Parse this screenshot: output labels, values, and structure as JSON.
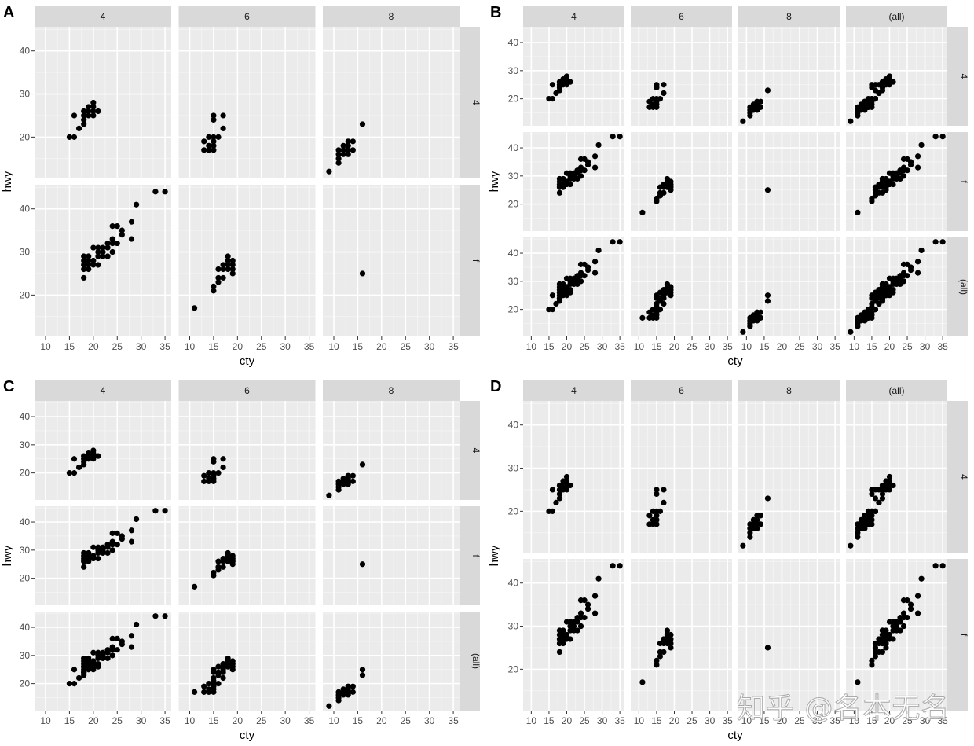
{
  "figure": {
    "panel_labels": [
      "A",
      "B",
      "C",
      "D"
    ],
    "watermark": "知乎 @名本无名",
    "colors": {
      "panel_bg": "#EBEBEB",
      "strip_bg": "#D9D9D9",
      "grid_major": "#FFFFFF",
      "grid_minor": "#F5F5F5",
      "axis_text": "#4D4D4D",
      "point": "#000000"
    }
  },
  "chart_data": [
    {
      "id": "A",
      "type": "scatter",
      "xlabel": "cty",
      "ylabel": "hwy",
      "col_strips": [
        "4",
        "6",
        "8"
      ],
      "row_strips": [
        "4",
        "f"
      ],
      "xticks": [
        10,
        15,
        20,
        25,
        30,
        35
      ],
      "yticks": [
        20,
        30,
        40
      ],
      "xlim": [
        7.7,
        36.3
      ],
      "ylim": [
        10.4,
        45.6
      ],
      "margins": false
    },
    {
      "id": "B",
      "type": "scatter",
      "xlabel": "cty",
      "ylabel": "hwy",
      "col_strips": [
        "4",
        "6",
        "8",
        "(all)"
      ],
      "row_strips": [
        "4",
        "f",
        "(all)"
      ],
      "xticks": [
        10,
        15,
        20,
        25,
        30,
        35
      ],
      "yticks": [
        20,
        30,
        40
      ],
      "xlim": [
        7.7,
        36.3
      ],
      "ylim": [
        10.4,
        45.6
      ],
      "margins": true
    },
    {
      "id": "C",
      "type": "scatter",
      "xlabel": "cty",
      "ylabel": "hwy",
      "col_strips": [
        "4",
        "6",
        "8"
      ],
      "row_strips": [
        "4",
        "f",
        "(all)"
      ],
      "xticks": [
        10,
        15,
        20,
        25,
        30,
        35
      ],
      "yticks": [
        20,
        30,
        40
      ],
      "xlim": [
        7.7,
        36.3
      ],
      "ylim": [
        10.4,
        45.6
      ],
      "margins": "rows"
    },
    {
      "id": "D",
      "type": "scatter",
      "xlabel": "cty",
      "ylabel": "hwy",
      "col_strips": [
        "4",
        "6",
        "8",
        "(all)"
      ],
      "row_strips": [
        "4",
        "f"
      ],
      "xticks": [
        10,
        15,
        20,
        25,
        30,
        35
      ],
      "yticks": [
        20,
        30,
        40
      ],
      "xlim": [
        7.7,
        36.3
      ],
      "ylim": [
        10.4,
        45.6
      ],
      "margins": "cols"
    }
  ],
  "groups": {
    "cyl4_drv4": [
      [
        15,
        20
      ],
      [
        16,
        20
      ],
      [
        16,
        25
      ],
      [
        17,
        22
      ],
      [
        18,
        23
      ],
      [
        18,
        24
      ],
      [
        18,
        25
      ],
      [
        18,
        26
      ],
      [
        19,
        25
      ],
      [
        19,
        26
      ],
      [
        19,
        27
      ],
      [
        20,
        25
      ],
      [
        20,
        26
      ],
      [
        20,
        27
      ],
      [
        20,
        28
      ],
      [
        21,
        26
      ]
    ],
    "cyl6_drv4": [
      [
        13,
        17
      ],
      [
        13,
        19
      ],
      [
        14,
        17
      ],
      [
        14,
        18
      ],
      [
        14,
        20
      ],
      [
        15,
        17
      ],
      [
        15,
        18
      ],
      [
        15,
        19
      ],
      [
        15,
        20
      ],
      [
        15,
        24
      ],
      [
        15,
        25
      ],
      [
        16,
        20
      ],
      [
        17,
        22
      ],
      [
        17,
        25
      ]
    ],
    "cyl8_drv4": [
      [
        9,
        12
      ],
      [
        11,
        14
      ],
      [
        11,
        15
      ],
      [
        11,
        16
      ],
      [
        11,
        17
      ],
      [
        12,
        16
      ],
      [
        12,
        17
      ],
      [
        12,
        18
      ],
      [
        13,
        16
      ],
      [
        13,
        17
      ],
      [
        13,
        18
      ],
      [
        13,
        19
      ],
      [
        14,
        17
      ],
      [
        14,
        19
      ],
      [
        16,
        23
      ]
    ],
    "cyl4_drvf": [
      [
        18,
        24
      ],
      [
        18,
        26
      ],
      [
        18,
        27
      ],
      [
        18,
        28
      ],
      [
        18,
        29
      ],
      [
        19,
        26
      ],
      [
        19,
        27
      ],
      [
        19,
        28
      ],
      [
        19,
        29
      ],
      [
        20,
        27
      ],
      [
        20,
        28
      ],
      [
        20,
        31
      ],
      [
        21,
        27
      ],
      [
        21,
        29
      ],
      [
        21,
        30
      ],
      [
        21,
        31
      ],
      [
        22,
        29
      ],
      [
        22,
        30
      ],
      [
        22,
        31
      ],
      [
        23,
        29
      ],
      [
        23,
        31
      ],
      [
        23,
        32
      ],
      [
        24,
        30
      ],
      [
        24,
        32
      ],
      [
        24,
        33
      ],
      [
        24,
        36
      ],
      [
        25,
        32
      ],
      [
        25,
        36
      ],
      [
        26,
        34
      ],
      [
        26,
        35
      ],
      [
        28,
        33
      ],
      [
        28,
        37
      ],
      [
        29,
        41
      ],
      [
        33,
        44
      ],
      [
        35,
        44
      ]
    ],
    "cyl6_drvf": [
      [
        11,
        17
      ],
      [
        15,
        21
      ],
      [
        15,
        22
      ],
      [
        16,
        23
      ],
      [
        16,
        24
      ],
      [
        16,
        26
      ],
      [
        17,
        24
      ],
      [
        17,
        26
      ],
      [
        17,
        27
      ],
      [
        18,
        26
      ],
      [
        18,
        27
      ],
      [
        18,
        28
      ],
      [
        18,
        29
      ],
      [
        19,
        25
      ],
      [
        19,
        26
      ],
      [
        19,
        27
      ],
      [
        19,
        28
      ]
    ],
    "cyl8_drvf": [
      [
        16,
        25
      ]
    ]
  }
}
